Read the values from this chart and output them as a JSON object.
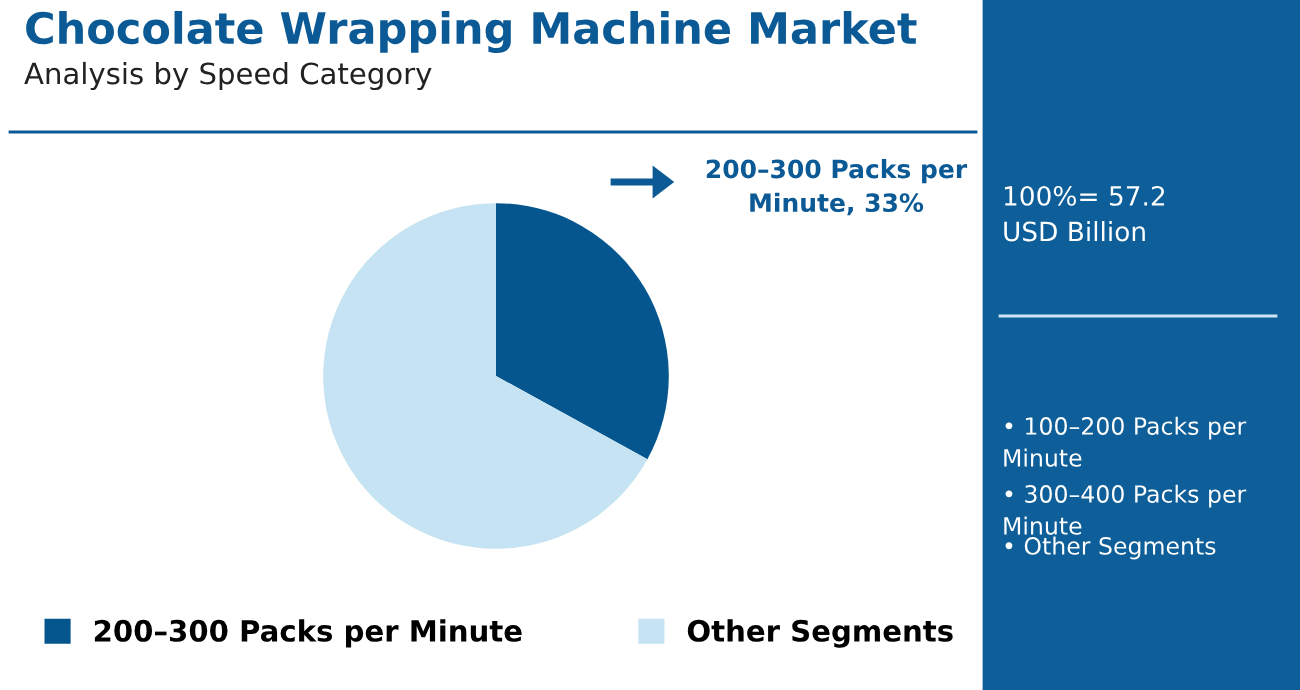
{
  "chart_data": {
    "type": "pie",
    "title": "Chocolate Wrapping Machine Market",
    "subtitle": "Analysis by Speed Category",
    "categories": [
      "200–300 Packs per Minute",
      "Other Segments"
    ],
    "values": [
      33,
      67
    ],
    "colors": [
      "#05568e",
      "#c5e3f2"
    ],
    "value_labels": [
      "200–300 Packs per Minute, 33%",
      null
    ],
    "legend": "bottom",
    "annotations": [
      "100%= 57.2 USD Billion",
      "• 100–200 Packs per Minute",
      "• 300–400 Packs per Minute",
      "• Other Segments"
    ]
  }
}
